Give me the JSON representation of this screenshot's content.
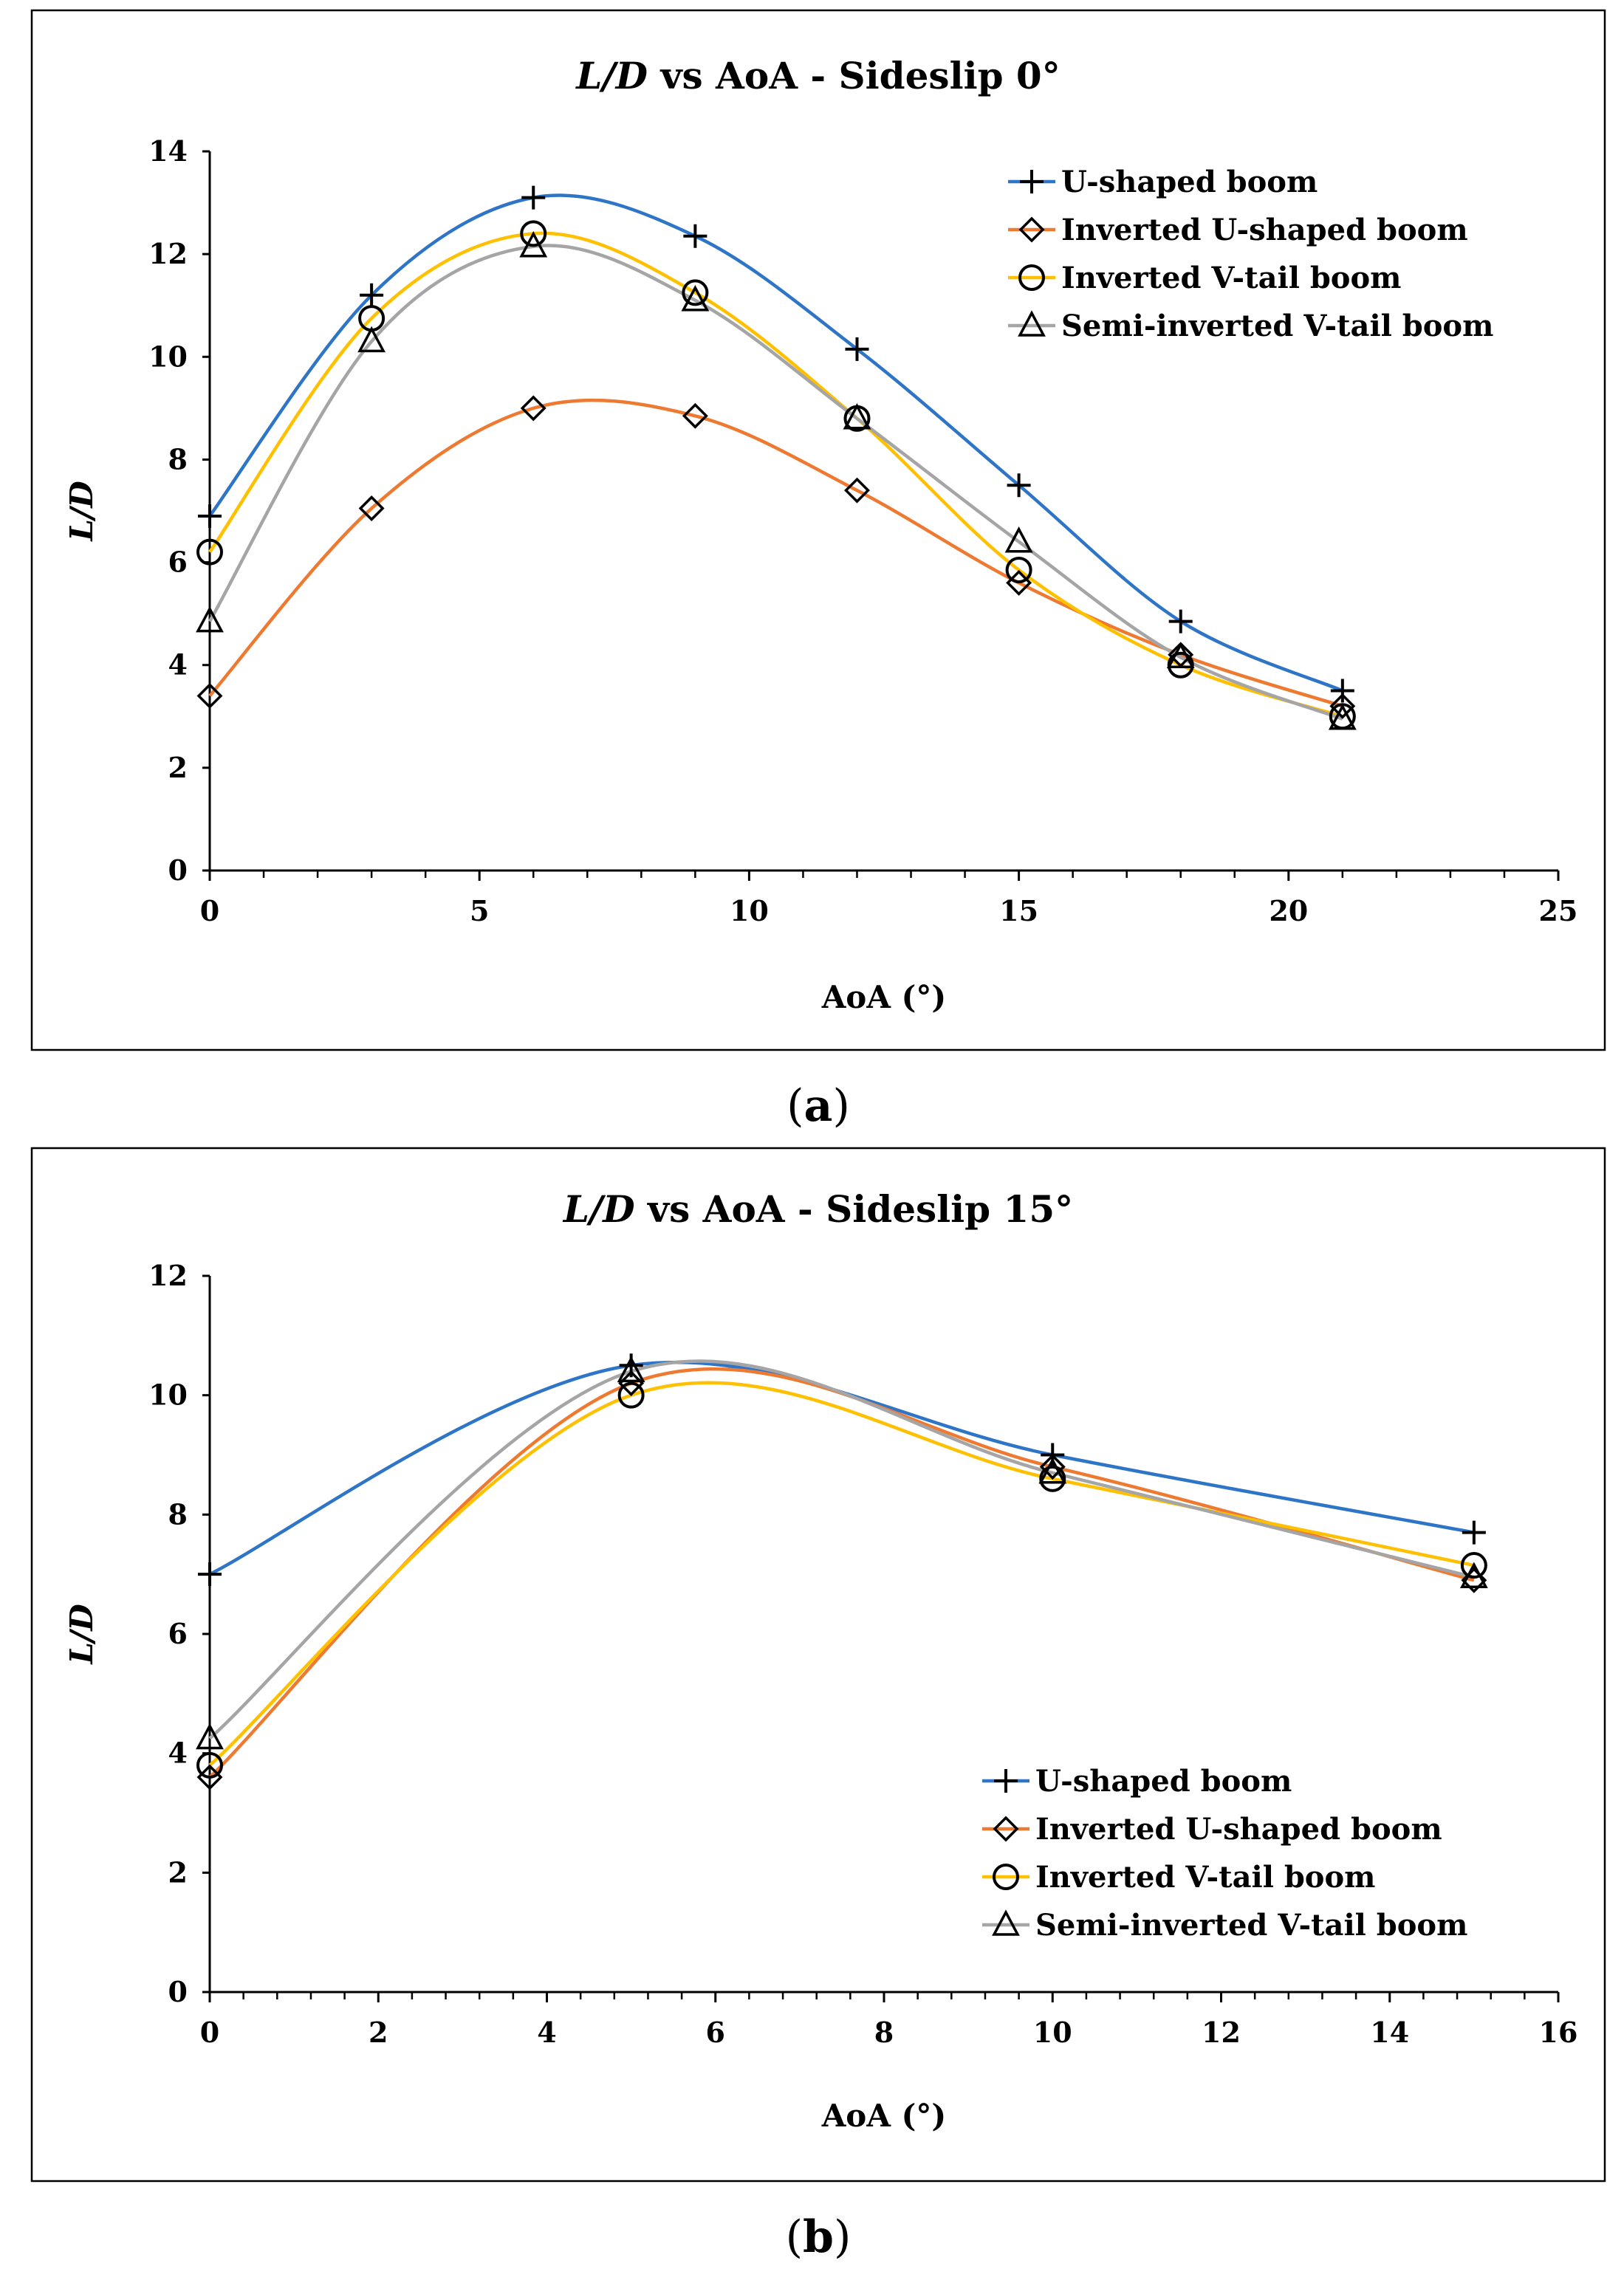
{
  "chart_data": [
    {
      "type": "line",
      "title_italic": "L/D",
      "title_rest": " vs AoA - Sideslip 0°",
      "caption_letter": "a",
      "xlabel": "AoA (°)",
      "ylabel": "L/D",
      "xlim": [
        0,
        25
      ],
      "ylim": [
        0,
        14
      ],
      "xticks": [
        "0",
        "5",
        "10",
        "15",
        "20",
        "25"
      ],
      "yticks": [
        "0",
        "2",
        "4",
        "6",
        "8",
        "10",
        "12",
        "14"
      ],
      "legend_position": "top-right",
      "x": [
        0,
        3,
        6,
        9,
        12,
        15,
        18,
        21
      ],
      "series": [
        {
          "name": "U-shaped boom",
          "marker": "plus",
          "color": "#2E75C8",
          "values": [
            6.9,
            11.2,
            13.1,
            12.35,
            10.15,
            7.5,
            4.85,
            3.5
          ]
        },
        {
          "name": "Inverted U-shaped boom",
          "marker": "diamond",
          "color": "#EE7A32",
          "values": [
            3.4,
            7.05,
            9.0,
            8.85,
            7.4,
            5.6,
            4.2,
            3.2
          ]
        },
        {
          "name": "Inverted V-tail boom",
          "marker": "circle",
          "color": "#FFC000",
          "values": [
            6.2,
            10.75,
            12.4,
            11.25,
            8.8,
            5.85,
            4.0,
            3.0
          ]
        },
        {
          "name": "Semi-inverted V-tail boom",
          "marker": "triangle",
          "color": "#A5A5A5",
          "values": [
            4.85,
            10.3,
            12.15,
            11.1,
            8.8,
            6.4,
            4.15,
            2.95
          ]
        }
      ]
    },
    {
      "type": "line",
      "title_italic": "L/D",
      "title_rest": " vs AoA - Sideslip 15°",
      "caption_letter": "b",
      "xlabel": "AoA (°)",
      "ylabel": "L/D",
      "xlim": [
        0,
        16
      ],
      "ylim": [
        0,
        12
      ],
      "xticks": [
        "0",
        "2",
        "4",
        "6",
        "8",
        "10",
        "12",
        "14",
        "16"
      ],
      "yticks": [
        "0",
        "2",
        "4",
        "6",
        "8",
        "10",
        "12"
      ],
      "legend_position": "bottom-right",
      "x": [
        0,
        5,
        10,
        15
      ],
      "series": [
        {
          "name": "U-shaped boom",
          "marker": "plus",
          "color": "#2E75C8",
          "values": [
            7.0,
            10.5,
            9.0,
            7.7
          ]
        },
        {
          "name": "Inverted U-shaped boom",
          "marker": "diamond",
          "color": "#EE7A32",
          "values": [
            3.6,
            10.2,
            8.8,
            6.9
          ]
        },
        {
          "name": "Inverted V-tail boom",
          "marker": "circle",
          "color": "#FFC000",
          "values": [
            3.8,
            10.0,
            8.6,
            7.15
          ]
        },
        {
          "name": "Semi-inverted V-tail boom",
          "marker": "triangle",
          "color": "#A5A5A5",
          "values": [
            4.25,
            10.4,
            8.7,
            6.95
          ]
        }
      ]
    }
  ]
}
